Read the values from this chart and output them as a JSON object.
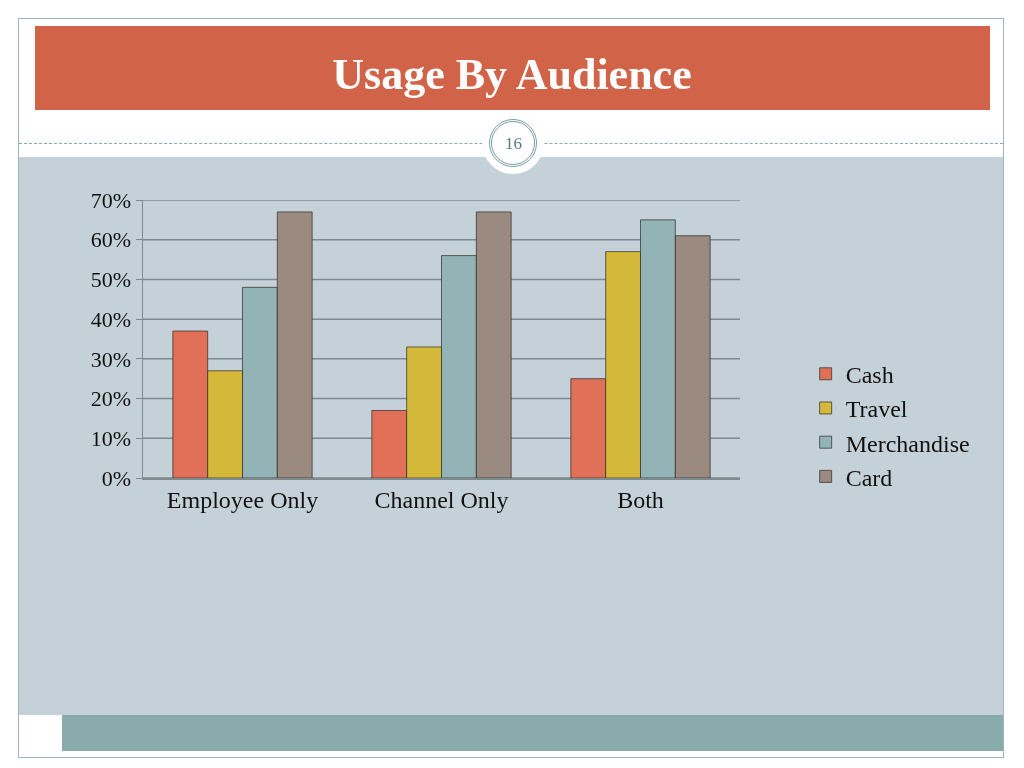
{
  "chart_data": {
    "type": "bar",
    "title": "Usage By Audience",
    "annotations": [
      "16"
    ],
    "categories": [
      "Employee Only",
      "Channel Only",
      "Both"
    ],
    "series": [
      {
        "name": "Cash",
        "color": "#e07058",
        "values": [
          37,
          17,
          25
        ]
      },
      {
        "name": "Travel",
        "color": "#d4b83a",
        "values": [
          27,
          33,
          57
        ]
      },
      {
        "name": "Merchandise",
        "color": "#93b4b6",
        "values": [
          48,
          56,
          65
        ]
      },
      {
        "name": "Card",
        "color": "#9a8a80",
        "values": [
          67,
          67,
          61
        ]
      }
    ],
    "ylim": [
      0,
      70
    ],
    "yticks": [
      {
        "value": 0,
        "label": "0%"
      },
      {
        "value": 10,
        "label": "10%"
      },
      {
        "value": 20,
        "label": "20%"
      },
      {
        "value": 30,
        "label": "30%"
      },
      {
        "value": 40,
        "label": "40%"
      },
      {
        "value": 50,
        "label": "50%"
      },
      {
        "value": 60,
        "label": "60%"
      },
      {
        "value": 70,
        "label": "70%"
      }
    ],
    "grid": "y",
    "legend": "right"
  }
}
